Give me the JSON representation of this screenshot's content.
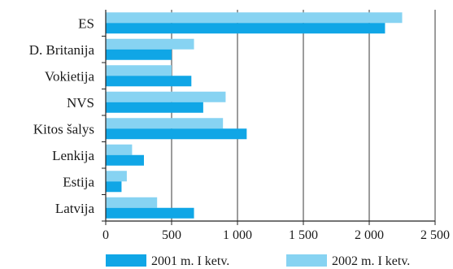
{
  "chart_data": {
    "type": "bar",
    "orientation": "horizontal",
    "categories": [
      "ES",
      "D. Britanija",
      "Vokietija",
      "NVS",
      "Kitos šalys",
      "Lenkija",
      "Estija",
      "Latvija"
    ],
    "series": [
      {
        "name": "2002 m. I ketv.",
        "color": "#87d3f2",
        "values": [
          2250,
          670,
          500,
          910,
          890,
          200,
          160,
          390
        ]
      },
      {
        "name": "2001 m. I ketv.",
        "color": "#10a6e6",
        "values": [
          2120,
          500,
          650,
          740,
          1070,
          290,
          120,
          670
        ]
      }
    ],
    "xlim": [
      0,
      2500
    ],
    "xticks": [
      0,
      500,
      1000,
      1500,
      2000,
      2500
    ],
    "xtick_labels": [
      "0",
      "500",
      "1 000",
      "1 500",
      "2 000",
      "2 500"
    ],
    "grid": true,
    "legend_position": "bottom",
    "legend_order": [
      1,
      0
    ],
    "title": "",
    "xlabel": "",
    "ylabel": ""
  }
}
